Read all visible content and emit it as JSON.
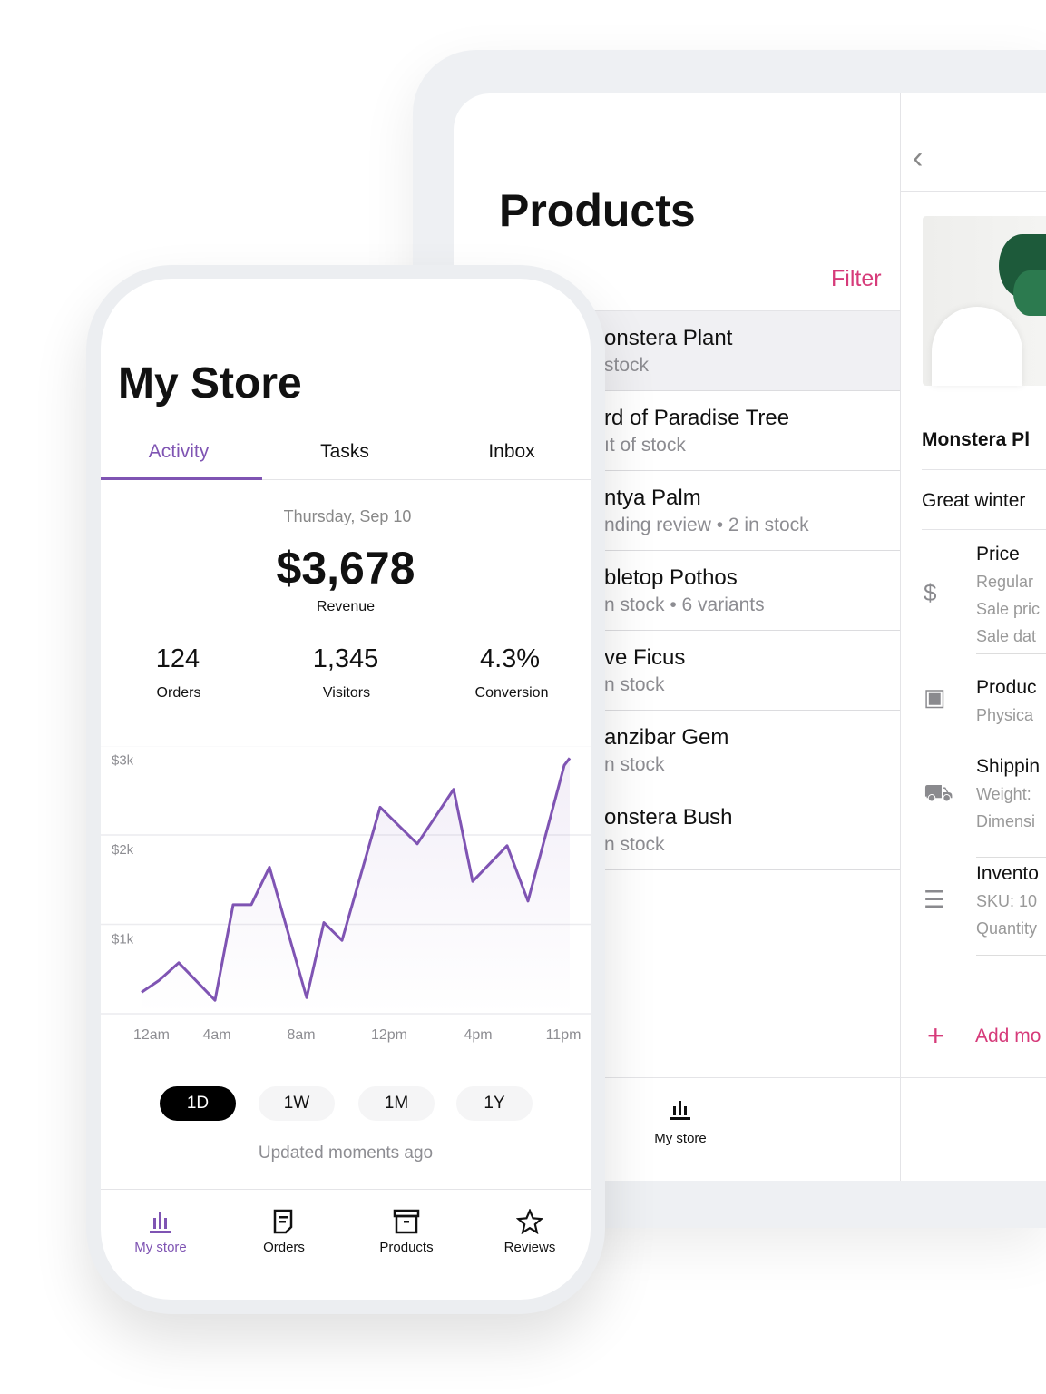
{
  "tablet": {
    "title": "Products",
    "filter": "Filter",
    "products": [
      {
        "name": "onstera Plant",
        "status": "stock"
      },
      {
        "name": "rd of Paradise Tree",
        "status": "ıt of stock"
      },
      {
        "name": "ntya Palm",
        "status": "nding review • 2 in stock"
      },
      {
        "name": "bletop Pothos",
        "status": "n stock • 6 variants"
      },
      {
        "name": "ve Ficus",
        "status": "n stock"
      },
      {
        "name": "anzibar Gem",
        "status": "n stock"
      },
      {
        "name": "onstera Bush",
        "status": "n stock"
      }
    ],
    "bottom_nav": {
      "label": "My store"
    },
    "detail": {
      "product_name": "Monstera Pl",
      "description": "Great winter",
      "sections": [
        {
          "icon": "dollar-icon",
          "title": "Price",
          "lines": [
            "Regular",
            "Sale pric",
            "Sale dat"
          ]
        },
        {
          "icon": "archive-box-icon",
          "title": "Produc",
          "lines": [
            "Physica"
          ]
        },
        {
          "icon": "truck-icon",
          "title": "Shippin",
          "lines": [
            "Weight:",
            "Dimensi"
          ]
        },
        {
          "icon": "checklist-icon",
          "title": "Invento",
          "lines": [
            "SKU: 10",
            "Quantity"
          ]
        }
      ],
      "add_more": "Add mo"
    }
  },
  "phone": {
    "title": "My Store",
    "tabs": [
      {
        "label": "Activity",
        "active": true
      },
      {
        "label": "Tasks"
      },
      {
        "label": "Inbox"
      }
    ],
    "date": "Thursday, Sep 10",
    "revenue": "$3,678",
    "revenue_label": "Revenue",
    "stats": [
      {
        "value": "124",
        "label": "Orders"
      },
      {
        "value": "1,345",
        "label": "Visitors"
      },
      {
        "value": "4.3%",
        "label": "Conversion"
      }
    ],
    "ranges": [
      {
        "label": "1D",
        "active": true
      },
      {
        "label": "1W"
      },
      {
        "label": "1M"
      },
      {
        "label": "1Y"
      }
    ],
    "updated": "Updated moments ago",
    "nav": [
      {
        "label": "My store",
        "icon": "bar-chart-icon",
        "active": true
      },
      {
        "label": "Orders",
        "icon": "document-icon"
      },
      {
        "label": "Products",
        "icon": "archive-box-icon"
      },
      {
        "label": "Reviews",
        "icon": "star-icon"
      }
    ]
  },
  "colors": {
    "accent": "#7f54b3",
    "filter": "#d63b7a",
    "active_pill": "#000000"
  },
  "chart_data": {
    "type": "area",
    "ytick_labels": [
      "$3k",
      "$2k",
      "$1k"
    ],
    "ylim": [
      0,
      3000
    ],
    "xtick_labels": [
      "12am",
      "4am",
      "8am",
      "12pm",
      "4pm",
      "11pm"
    ],
    "values": [
      240,
      370,
      570,
      150,
      1220,
      1220,
      1640,
      180,
      1020,
      820,
      2310,
      1900,
      2510,
      1480,
      1880,
      1260,
      2780,
      2860
    ],
    "grid": true
  }
}
